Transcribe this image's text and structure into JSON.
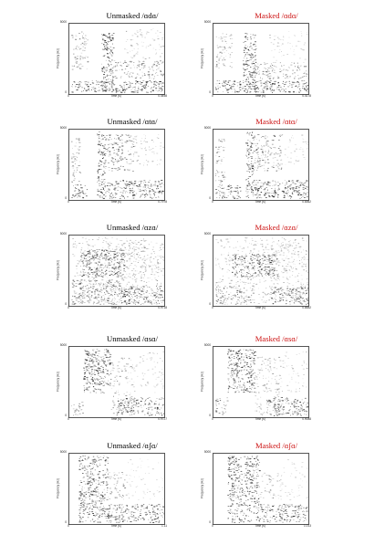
{
  "panels": [
    {
      "title": "Unmasked /ɑdɑ/",
      "title_color": "#111111",
      "y_top": "5000",
      "y_bottom": "0",
      "y_label": "Frequency (Hz)",
      "x_left": "0",
      "x_right": "0.4458",
      "x_label": "Time (s)"
    },
    {
      "title": "Masked /ɑdɑ/",
      "title_color": "#cc1111",
      "y_top": "5000",
      "y_bottom": "0",
      "y_label": "Frequency (Hz)",
      "x_left": "0",
      "x_right": "0.4178",
      "x_label": "Time (s)"
    },
    {
      "title": "Unmasked /ɑtɑ/",
      "title_color": "#111111",
      "y_top": "5000",
      "y_bottom": "0",
      "y_label": "Frequency (Hz)",
      "x_left": "0",
      "x_right": "0.7978",
      "x_label": "Time (s)"
    },
    {
      "title": "Masked /ɑtɑ/",
      "title_color": "#cc1111",
      "y_top": "5000",
      "y_bottom": "0",
      "y_label": "Frequency (Hz)",
      "x_left": "0",
      "x_right": "0.8362",
      "x_label": "Time (s)"
    },
    {
      "title": "Unmasked /ɑzɑ/",
      "title_color": "#111111",
      "y_top": "5000",
      "y_bottom": "0",
      "y_label": "Frequency (Hz)",
      "x_left": "0",
      "x_right": "0.9718",
      "x_label": "Time (s)"
    },
    {
      "title": "Masked /ɑzɑ/",
      "title_color": "#cc1111",
      "y_top": "5000",
      "y_bottom": "0",
      "y_label": "Frequency (Hz)",
      "x_left": "0",
      "x_right": "0.8582",
      "x_label": "Time (s)"
    },
    {
      "title": "Unmasked /ɑsɑ/",
      "title_color": "#111111",
      "y_top": "5000",
      "y_bottom": "0",
      "y_label": "Frequency (Hz)",
      "x_left": "0",
      "x_right": "0.9727",
      "x_label": "Time (s)"
    },
    {
      "title": "Masked /ɑsɑ/",
      "title_color": "#cc1111",
      "y_top": "5000",
      "y_bottom": "0",
      "y_label": "Frequency (Hz)",
      "x_left": "0",
      "x_right": "0.9088",
      "x_label": "Time (s)"
    },
    {
      "title": "Unmasked /ɑʃɑ/",
      "title_color": "#111111",
      "y_top": "5000",
      "y_bottom": "0",
      "y_label": "Frequency (Hz)",
      "x_left": "0",
      "x_right": "1.11",
      "x_label": "Time (s)"
    },
    {
      "title": "Masked /ɑʃɑ/",
      "title_color": "#cc1111",
      "y_top": "5000",
      "y_bottom": "0",
      "y_label": "Frequency (Hz)",
      "x_left": "0",
      "x_right": "1.013",
      "x_label": "Time (s)"
    }
  ]
}
